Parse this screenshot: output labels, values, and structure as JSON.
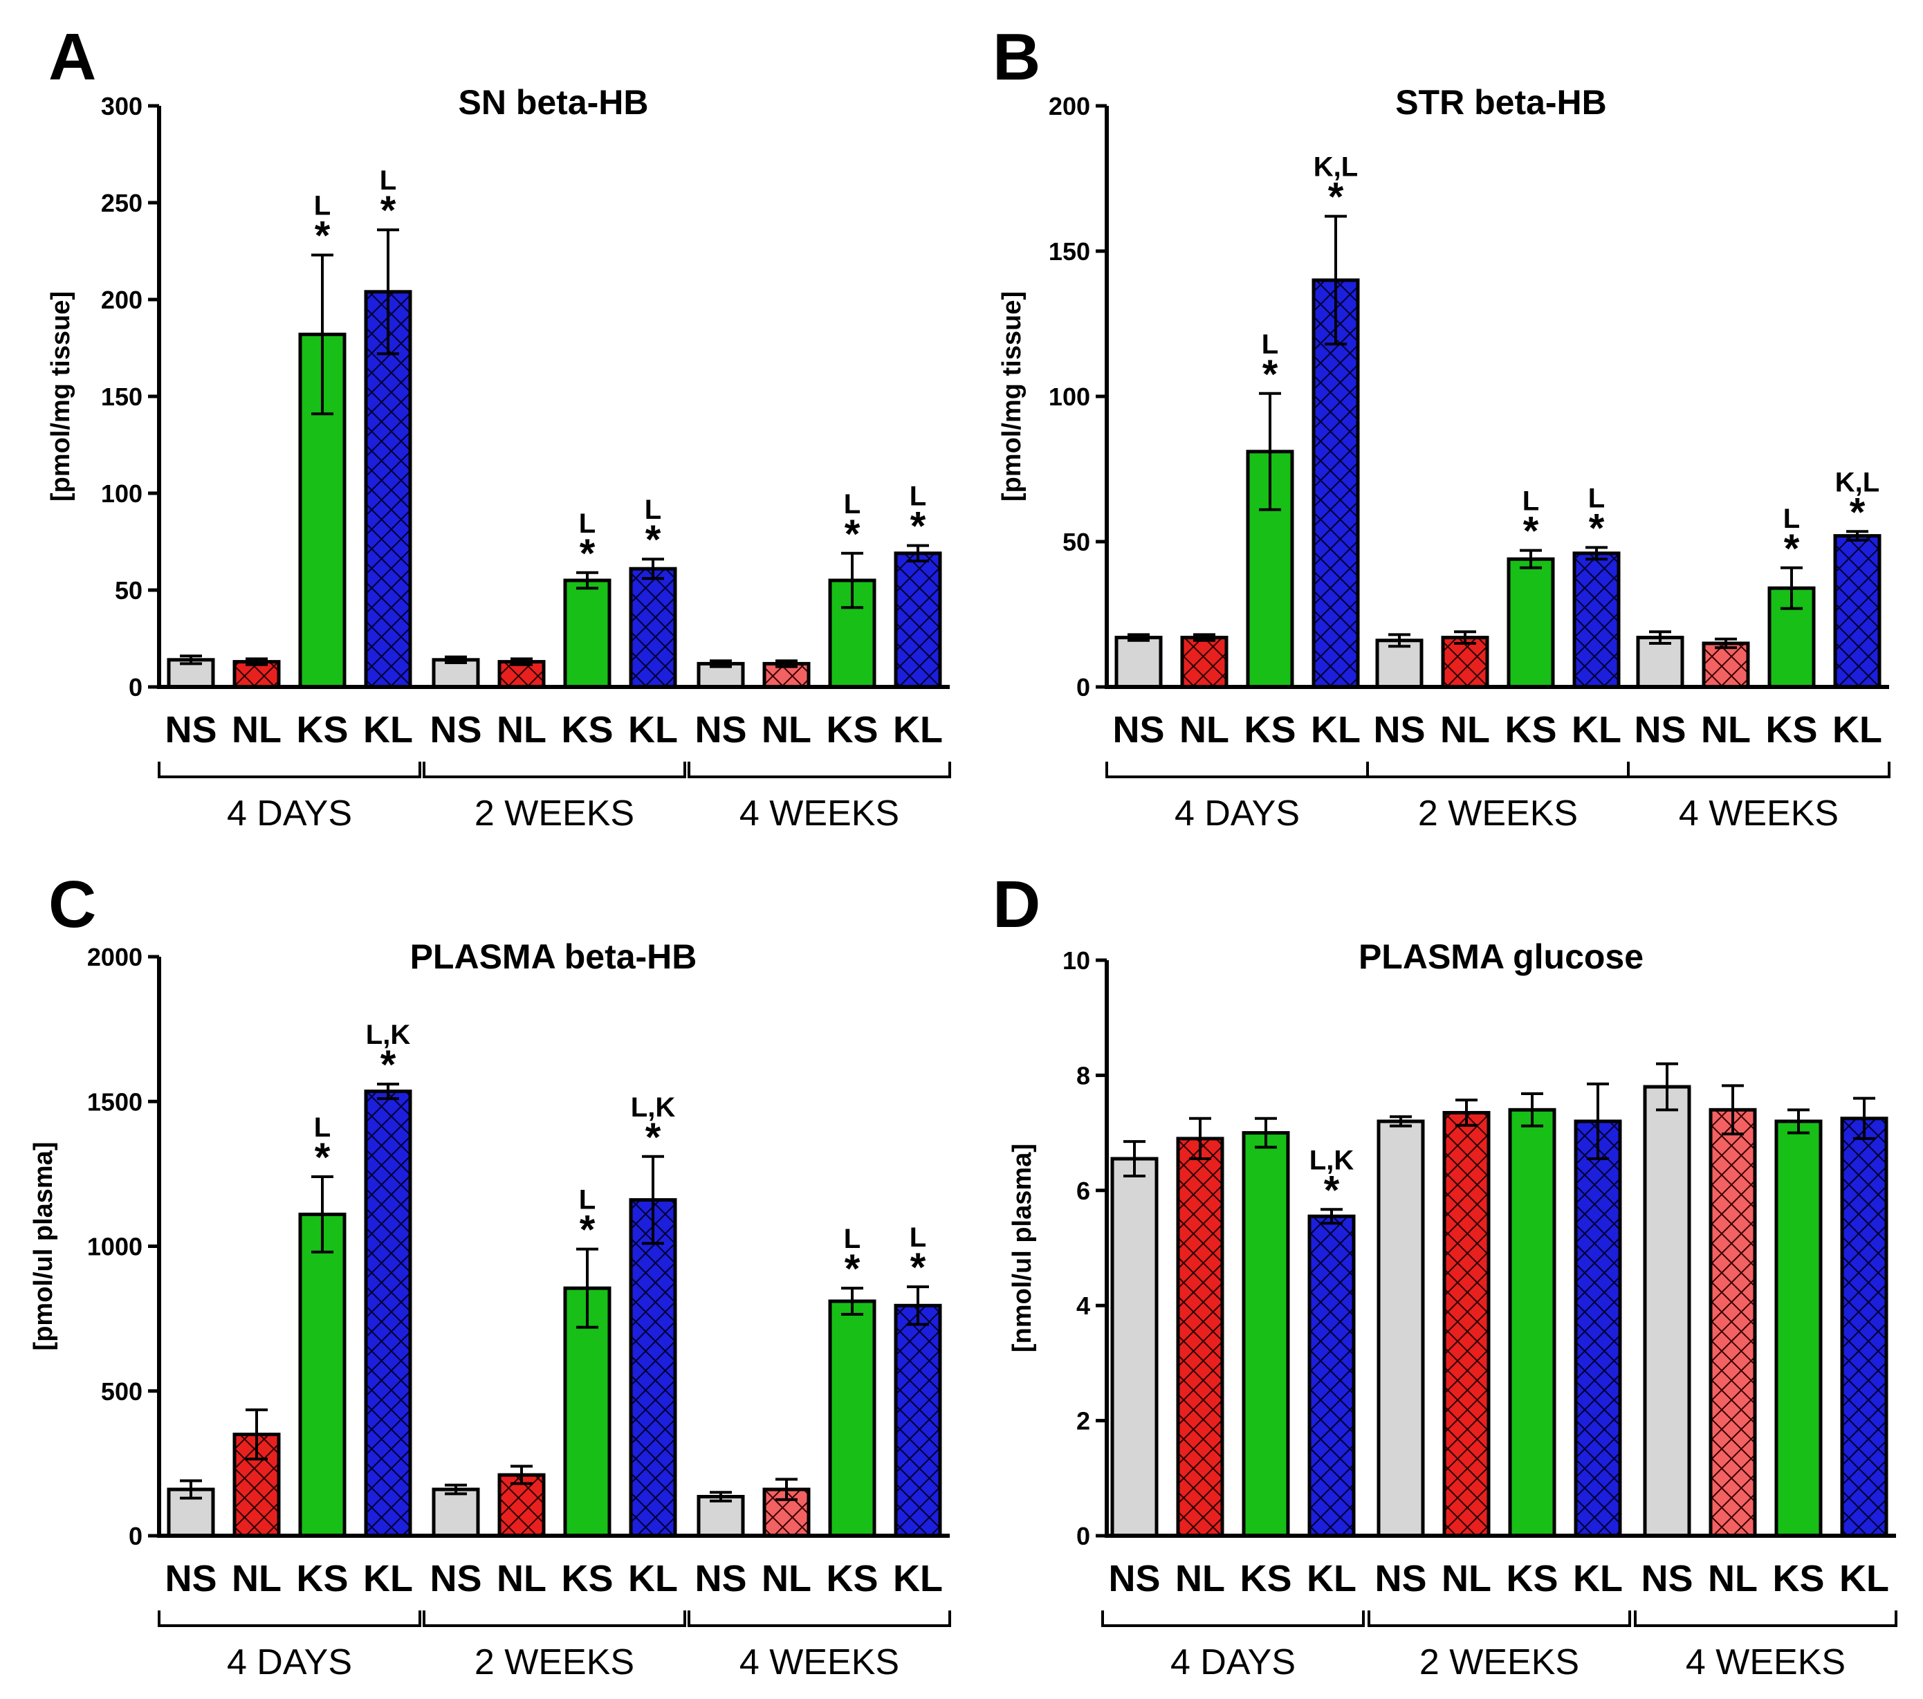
{
  "colors": {
    "NS": "#d6d6d6",
    "NL": "#e8211f",
    "NL_light": "#f26262",
    "KS": "#17bf17",
    "KL": "#1c1fdb"
  },
  "chart_data": [
    {
      "panel": "A",
      "type": "bar",
      "title": "SN beta-HB",
      "ylabel": "[pmol/mg tissue]",
      "ylim": [
        0,
        300
      ],
      "yticks": [
        0,
        50,
        100,
        150,
        200,
        250,
        300
      ],
      "categories": [
        "NS",
        "NL",
        "KS",
        "KL",
        "NS",
        "NL",
        "KS",
        "KL",
        "NS",
        "NL",
        "KS",
        "KL"
      ],
      "groups": [
        "4 DAYS",
        "2 WEEKS",
        "4 WEEKS"
      ],
      "values": [
        14,
        13,
        182,
        204,
        14,
        13,
        55,
        61,
        12,
        12,
        55,
        69
      ],
      "errors": [
        2,
        1.5,
        41,
        32,
        1.5,
        1.5,
        4,
        5,
        1.5,
        1.5,
        14,
        4
      ],
      "annotations": [
        "",
        "",
        "L *",
        "L *",
        "",
        "",
        "L *",
        "L *",
        "",
        "",
        "L *",
        "L *"
      ]
    },
    {
      "panel": "B",
      "type": "bar",
      "title": "STR beta-HB",
      "ylabel": "[pmol/mg tissue]",
      "ylim": [
        0,
        200
      ],
      "yticks": [
        0,
        50,
        100,
        150,
        200
      ],
      "categories": [
        "NS",
        "NL",
        "KS",
        "KL",
        "NS",
        "NL",
        "KS",
        "KL",
        "NS",
        "NL",
        "KS",
        "KL"
      ],
      "groups": [
        "4 DAYS",
        "2 WEEKS",
        "4 WEEKS"
      ],
      "values": [
        17,
        17,
        81,
        140,
        16,
        17,
        44,
        46,
        17,
        15,
        34,
        52
      ],
      "errors": [
        1,
        1,
        20,
        22,
        2,
        2,
        3,
        2,
        2,
        1.5,
        7,
        1.5
      ],
      "annotations": [
        "",
        "",
        "L *",
        "K,L *",
        "",
        "",
        "L *",
        "L *",
        "",
        "",
        "L *",
        "K,L *"
      ]
    },
    {
      "panel": "C",
      "type": "bar",
      "title": "PLASMA beta-HB",
      "ylabel": "[pmol/ul plasma]",
      "ylim": [
        0,
        2000
      ],
      "yticks": [
        0,
        500,
        1000,
        1500,
        2000
      ],
      "categories": [
        "NS",
        "NL",
        "KS",
        "KL",
        "NS",
        "NL",
        "KS",
        "KL",
        "NS",
        "NL",
        "KS",
        "KL"
      ],
      "groups": [
        "4 DAYS",
        "2 WEEKS",
        "4 WEEKS"
      ],
      "values": [
        160,
        350,
        1110,
        1535,
        160,
        210,
        855,
        1160,
        135,
        160,
        810,
        795
      ],
      "errors": [
        30,
        85,
        130,
        25,
        15,
        30,
        135,
        150,
        15,
        35,
        45,
        65
      ],
      "annotations": [
        "",
        "",
        "L *",
        "L,K *",
        "",
        "",
        "L *",
        "L,K *",
        "",
        "",
        "L *",
        "L *"
      ]
    },
    {
      "panel": "D",
      "type": "bar",
      "title": "PLASMA glucose",
      "ylabel": "[nmol/ul plasma]",
      "ylim": [
        0,
        10
      ],
      "yticks": [
        0,
        2,
        4,
        6,
        8,
        10
      ],
      "categories": [
        "NS",
        "NL",
        "KS",
        "KL",
        "NS",
        "NL",
        "KS",
        "KL",
        "NS",
        "NL",
        "KS",
        "KL"
      ],
      "groups": [
        "4 DAYS",
        "2 WEEKS",
        "4 WEEKS"
      ],
      "values": [
        6.55,
        6.9,
        7.0,
        5.55,
        7.2,
        7.35,
        7.4,
        7.2,
        7.8,
        7.4,
        7.2,
        7.25
      ],
      "errors": [
        0.3,
        0.35,
        0.25,
        0.12,
        0.08,
        0.22,
        0.28,
        0.65,
        0.4,
        0.42,
        0.2,
        0.35
      ],
      "annotations": [
        "",
        "",
        "",
        "L,K *",
        "",
        "",
        "",
        "",
        "",
        "",
        "",
        ""
      ]
    }
  ]
}
